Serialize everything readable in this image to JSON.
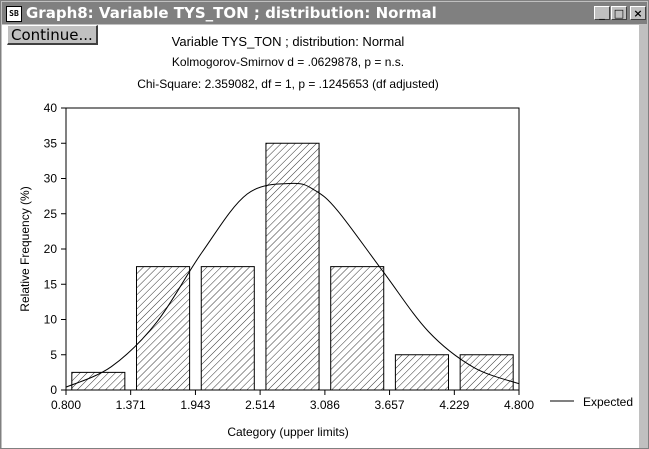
{
  "window": {
    "title": "Graph8: Variable TYS_TON ; distribution: Normal",
    "icon_name": "statistica-graph-icon",
    "continue_label": "Continue...",
    "minimize_glyph": "_",
    "maximize_glyph": "□",
    "close_glyph": "×"
  },
  "chart_data": {
    "type": "bar",
    "title": "Variable TYS_TON ; distribution: Normal",
    "subtitle_lines": [
      "Kolmogorov-Smirnov d = .0629878, p = n.s.",
      "Chi-Square: 2.359082, df = 1, p = .1245653 (df adjusted)"
    ],
    "xlabel": "Category (upper limits)",
    "ylabel": "Relative Frequency (%)",
    "x_ticks": [
      "0.800",
      "1.371",
      "1.943",
      "2.514",
      "3.086",
      "3.657",
      "4.229",
      "4.800"
    ],
    "x_tick_values": [
      0.8,
      1.371,
      1.943,
      2.514,
      3.086,
      3.657,
      4.229,
      4.8
    ],
    "xlim": [
      0.8,
      4.8
    ],
    "ylim": [
      0,
      40
    ],
    "y_ticks": [
      0,
      5,
      10,
      15,
      20,
      25,
      30,
      35,
      40
    ],
    "bars": [
      {
        "upper": 1.371,
        "value": 2.5
      },
      {
        "upper": 1.943,
        "value": 17.5
      },
      {
        "upper": 2.514,
        "value": 17.5
      },
      {
        "upper": 3.086,
        "value": 35
      },
      {
        "upper": 3.657,
        "value": 17.5
      },
      {
        "upper": 4.229,
        "value": 5
      },
      {
        "upper": 4.8,
        "value": 5
      }
    ],
    "expected_curve": {
      "name": "Expected",
      "distribution": "normal",
      "x": [
        0.8,
        1.2,
        1.6,
        2.0,
        2.4,
        2.8,
        3.0,
        3.2,
        3.6,
        4.0,
        4.4,
        4.8
      ],
      "y": [
        0.4,
        3.3,
        9.6,
        19.5,
        27.8,
        29.3,
        28.3,
        25.4,
        16.8,
        8.3,
        3.2,
        0.9
      ]
    },
    "legend": {
      "position": "right",
      "label": "Expected"
    },
    "bar_fill": "hatched",
    "grid": false
  }
}
